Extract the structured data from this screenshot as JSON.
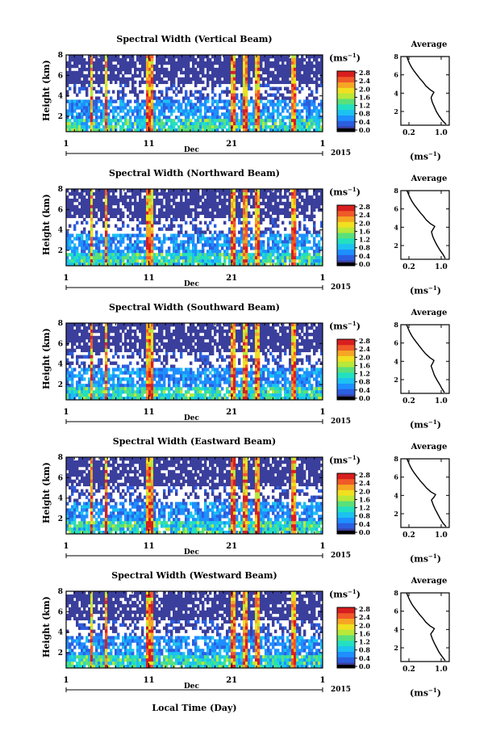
{
  "chart_data": [
    {
      "type": "heatmap",
      "title": "Spectral Width (Vertical Beam)",
      "ylabel": "Height (km)",
      "colorbar_unit": "(ms-1)",
      "month": "Dec",
      "year": "2015",
      "x_ticks": [
        "1",
        "11",
        "21",
        "1"
      ],
      "y_ticks": [
        "2",
        "4",
        "6",
        "8"
      ],
      "colorbar_ticks": [
        "0.0",
        "0.4",
        "0.8",
        "1.2",
        "1.6",
        "2.0",
        "2.4",
        "2.8"
      ],
      "avg_title": "Average",
      "avg_xlabel": "(ms-1)",
      "avg_x_ticks": [
        "0.2",
        "1.0"
      ],
      "avg_xlim": [
        0.0,
        1.2
      ],
      "ylim": [
        0.5,
        8.0
      ],
      "avg_profile": {
        "height": [
          0.6,
          1.0,
          1.5,
          2.0,
          2.5,
          3.0,
          3.5,
          3.8,
          4.1,
          4.4,
          4.8,
          5.2,
          5.6,
          6.0,
          6.4,
          6.8,
          7.2,
          7.6,
          8.0
        ],
        "value": [
          1.12,
          1.03,
          0.95,
          0.88,
          0.83,
          0.78,
          0.75,
          0.78,
          0.82,
          0.72,
          0.62,
          0.55,
          0.47,
          0.4,
          0.33,
          0.27,
          0.22,
          0.18,
          0.15
        ]
      }
    },
    {
      "type": "heatmap",
      "title": "Spectral Width (Northward Beam)",
      "ylabel": "Height (km)",
      "colorbar_unit": "(ms-1)",
      "month": "Dec",
      "year": "2015",
      "x_ticks": [
        "1",
        "11",
        "21",
        "1"
      ],
      "y_ticks": [
        "2",
        "4",
        "6",
        "8"
      ],
      "colorbar_ticks": [
        "0.0",
        "0.4",
        "0.8",
        "1.2",
        "1.6",
        "2.0",
        "2.4",
        "2.8"
      ],
      "avg_title": "Average",
      "avg_xlabel": "(ms-1)",
      "avg_x_ticks": [
        "0.2",
        "1.0"
      ],
      "avg_xlim": [
        0.0,
        1.2
      ],
      "ylim": [
        0.5,
        8.0
      ],
      "avg_profile": {
        "height": [
          0.6,
          1.0,
          1.5,
          2.0,
          2.5,
          3.0,
          3.5,
          3.8,
          4.1,
          4.4,
          4.8,
          5.2,
          5.6,
          6.0,
          6.4,
          6.8,
          7.2,
          7.6,
          8.0
        ],
        "value": [
          1.1,
          1.05,
          0.97,
          0.9,
          0.84,
          0.79,
          0.76,
          0.8,
          0.84,
          0.73,
          0.63,
          0.56,
          0.48,
          0.41,
          0.34,
          0.28,
          0.23,
          0.19,
          0.15
        ]
      }
    },
    {
      "type": "heatmap",
      "title": "Spectral Width (Southward Beam)",
      "ylabel": "Height (km)",
      "colorbar_unit": "(ms-1)",
      "month": "Dec",
      "year": "2015",
      "x_ticks": [
        "1",
        "11",
        "21",
        "1"
      ],
      "y_ticks": [
        "2",
        "4",
        "6",
        "8"
      ],
      "colorbar_ticks": [
        "0.0",
        "0.4",
        "0.8",
        "1.2",
        "1.6",
        "2.0",
        "2.4",
        "2.8"
      ],
      "avg_title": "Average",
      "avg_xlabel": "(ms-1)",
      "avg_x_ticks": [
        "0.2",
        "1.0"
      ],
      "avg_xlim": [
        0.0,
        1.2
      ],
      "ylim": [
        0.5,
        8.0
      ],
      "avg_profile": {
        "height": [
          0.6,
          1.0,
          1.5,
          2.0,
          2.5,
          3.0,
          3.5,
          3.8,
          4.1,
          4.4,
          4.8,
          5.2,
          5.6,
          6.0,
          6.4,
          6.8,
          7.2,
          7.6,
          8.0
        ],
        "value": [
          1.08,
          1.02,
          0.96,
          0.89,
          0.83,
          0.79,
          0.75,
          0.79,
          0.82,
          0.72,
          0.62,
          0.54,
          0.47,
          0.4,
          0.33,
          0.27,
          0.22,
          0.18,
          0.14
        ]
      }
    },
    {
      "type": "heatmap",
      "title": "Spectral Width (Eastward Beam)",
      "ylabel": "Height (km)",
      "colorbar_unit": "(ms-1)",
      "month": "Dec",
      "year": "2015",
      "x_ticks": [
        "1",
        "11",
        "21",
        "1"
      ],
      "y_ticks": [
        "2",
        "4",
        "6",
        "8"
      ],
      "colorbar_ticks": [
        "0.0",
        "0.4",
        "0.8",
        "1.2",
        "1.6",
        "2.0",
        "2.4",
        "2.8"
      ],
      "avg_title": "Average",
      "avg_xlabel": "(ms-1)",
      "avg_x_ticks": [
        "0.2",
        "1.0"
      ],
      "avg_xlim": [
        0.0,
        1.2
      ],
      "ylim": [
        0.5,
        8.0
      ],
      "avg_profile": {
        "height": [
          0.6,
          1.0,
          1.5,
          2.0,
          2.5,
          3.0,
          3.5,
          3.8,
          4.1,
          4.4,
          4.8,
          5.2,
          5.6,
          6.0,
          6.4,
          6.8,
          7.2,
          7.6,
          8.0
        ],
        "value": [
          1.12,
          1.04,
          0.97,
          0.91,
          0.85,
          0.8,
          0.76,
          0.82,
          0.86,
          0.74,
          0.64,
          0.56,
          0.48,
          0.41,
          0.34,
          0.28,
          0.23,
          0.19,
          0.15
        ]
      }
    },
    {
      "type": "heatmap",
      "title": "Spectral Width (Westward Beam)",
      "ylabel": "Height (km)",
      "colorbar_unit": "(ms-1)",
      "month": "Dec",
      "year": "2015",
      "x_ticks": [
        "1",
        "11",
        "21",
        "1"
      ],
      "y_ticks": [
        "2",
        "4",
        "6",
        "8"
      ],
      "colorbar_ticks": [
        "0.0",
        "0.4",
        "0.8",
        "1.2",
        "1.6",
        "2.0",
        "2.4",
        "2.8"
      ],
      "avg_title": "Average",
      "avg_xlabel": "(ms-1)",
      "avg_x_ticks": [
        "0.2",
        "1.0"
      ],
      "avg_xlim": [
        0.0,
        1.2
      ],
      "ylim": [
        0.5,
        8.0
      ],
      "avg_profile": {
        "height": [
          0.6,
          1.0,
          1.5,
          2.0,
          2.5,
          3.0,
          3.5,
          3.8,
          4.1,
          4.4,
          4.8,
          5.2,
          5.6,
          6.0,
          6.4,
          6.8,
          7.2,
          7.6,
          8.0
        ],
        "value": [
          1.1,
          1.03,
          0.95,
          0.89,
          0.83,
          0.78,
          0.74,
          0.79,
          0.83,
          0.72,
          0.62,
          0.55,
          0.47,
          0.4,
          0.33,
          0.27,
          0.22,
          0.18,
          0.14
        ]
      }
    }
  ],
  "xlabel": "Local Time (Day)",
  "colormap": [
    "#3b3f9c",
    "#2b5fe0",
    "#1e8fff",
    "#1cc2f0",
    "#22e0c0",
    "#5ae07a",
    "#b8e83a",
    "#f0e020",
    "#f5a623",
    "#f05a28",
    "#d81e1e"
  ]
}
